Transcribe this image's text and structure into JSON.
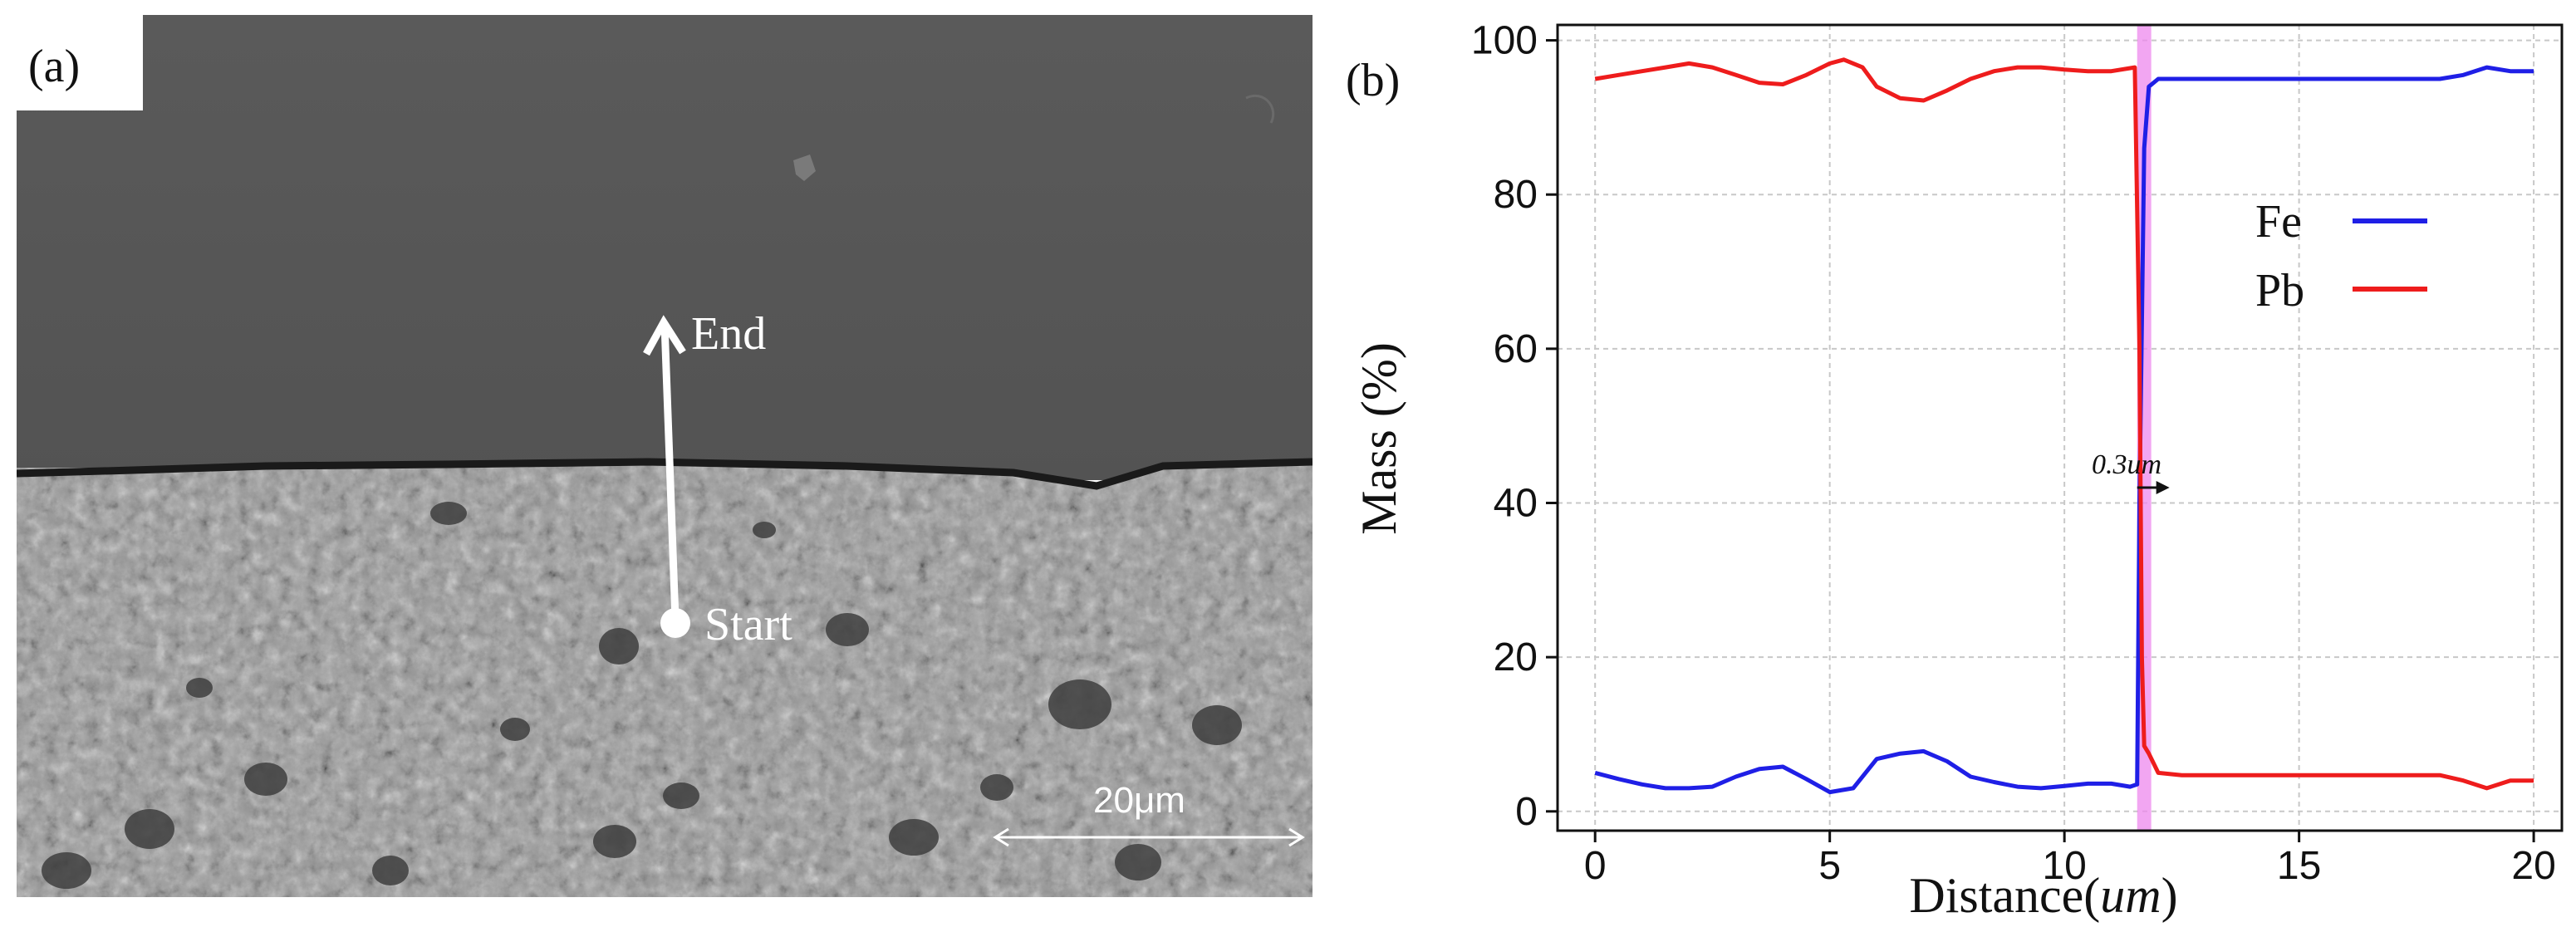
{
  "panel_a": {
    "label": "(a)",
    "end_label": "End",
    "start_label": "Start",
    "scale_label": "20μm"
  },
  "panel_b": {
    "label": "(b)",
    "annotation": "0.3",
    "annotation_unit": "um"
  },
  "colors": {
    "fe": "#1f1fe6",
    "pb": "#ee1c1c",
    "band": "#ee88ee"
  },
  "chart_data": {
    "type": "line",
    "xlabel": "Distance(",
    "xlabel_unit": "um",
    "xlabel_close": ")",
    "ylabel": "Mass (%)",
    "xlim": [
      -0.8,
      20.6
    ],
    "ylim": [
      -2.5,
      102
    ],
    "xticks": [
      0,
      5,
      10,
      15,
      20
    ],
    "yticks": [
      0,
      20,
      40,
      60,
      80,
      100
    ],
    "grid": true,
    "legend": "upper-right",
    "band": [
      11.55,
      11.85
    ],
    "series": [
      {
        "name": "Fe",
        "color": "#1f1fe6",
        "x": [
          0,
          0.5,
          1,
          1.5,
          2,
          2.5,
          3,
          3.5,
          4,
          4.5,
          5,
          5.5,
          6,
          6.5,
          7,
          7.5,
          8,
          8.5,
          9,
          9.5,
          10,
          10.5,
          11,
          11.4,
          11.55,
          11.6,
          11.7,
          11.8,
          12,
          12.5,
          13,
          14,
          15,
          16,
          17,
          18,
          18.5,
          19,
          19.5,
          20
        ],
        "y": [
          5,
          4.2,
          3.5,
          3,
          3,
          3.2,
          4.5,
          5.5,
          5.8,
          4.2,
          2.5,
          3,
          6.8,
          7.5,
          7.8,
          6.5,
          4.5,
          3.8,
          3.2,
          3,
          3.3,
          3.6,
          3.6,
          3.2,
          3.5,
          40,
          86,
          94,
          95,
          95,
          95,
          95,
          95,
          95,
          95,
          95,
          95.5,
          96.5,
          96,
          96
        ]
      },
      {
        "name": "Pb",
        "color": "#ee1c1c",
        "x": [
          0,
          0.5,
          1,
          1.5,
          2,
          2.5,
          3,
          3.5,
          4,
          4.5,
          5,
          5.3,
          5.7,
          6,
          6.5,
          7,
          7.5,
          8,
          8.5,
          9,
          9.5,
          10,
          10.5,
          11,
          11.5,
          11.6,
          11.65,
          11.7,
          11.8,
          12,
          12.5,
          13,
          14,
          15,
          16,
          17,
          18,
          18.5,
          19,
          19.5,
          20
        ],
        "y": [
          95,
          95.5,
          96,
          96.5,
          97,
          96.5,
          95.5,
          94.5,
          94.3,
          95.5,
          97,
          97.5,
          96.5,
          94,
          92.5,
          92.2,
          93.5,
          95,
          96,
          96.5,
          96.5,
          96.2,
          96,
          96,
          96.5,
          60,
          20,
          8.5,
          7.5,
          5,
          4.7,
          4.7,
          4.7,
          4.7,
          4.7,
          4.7,
          4.7,
          4,
          3,
          4,
          4
        ]
      }
    ]
  }
}
